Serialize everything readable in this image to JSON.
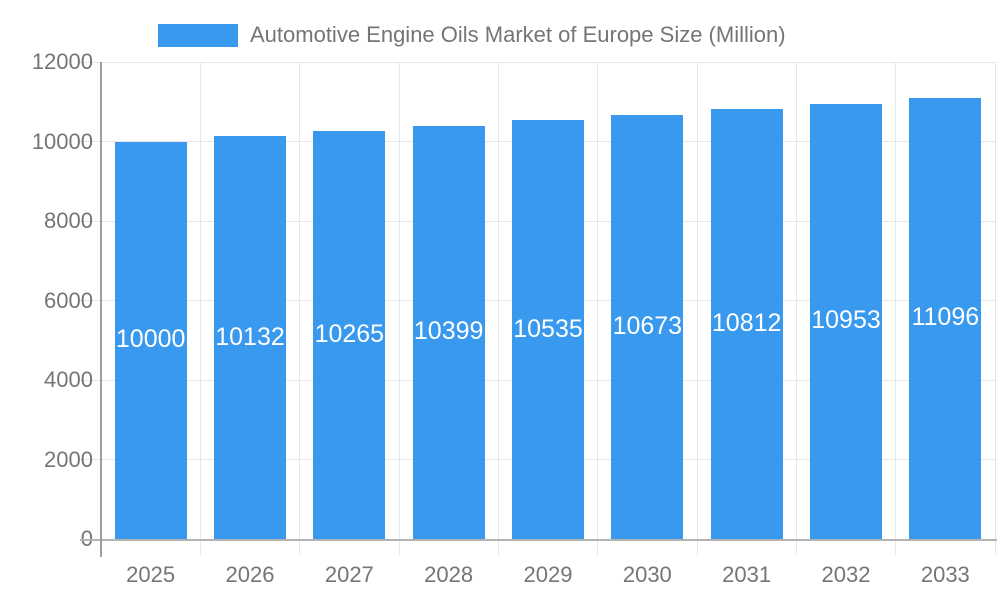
{
  "legend": {
    "label": "Automotive Engine Oils Market of Europe Size (Million)"
  },
  "chart_data": {
    "type": "bar",
    "title": "Automotive Engine Oils Market of Europe Size (Million)",
    "series_name": "Automotive Engine Oils Market of Europe Size (Million)",
    "categories": [
      "2025",
      "2026",
      "2027",
      "2028",
      "2029",
      "2030",
      "2031",
      "2032",
      "2033"
    ],
    "values": [
      10000,
      10132,
      10265,
      10399,
      10535,
      10673,
      10812,
      10953,
      11096
    ],
    "value_labels": [
      "10000",
      "10132",
      "10265",
      "10399",
      "10535",
      "10673",
      "10812",
      "10953",
      "11096"
    ],
    "xlabel": "",
    "ylabel": "",
    "ylim": [
      0,
      12000
    ],
    "y_ticks": [
      0,
      2000,
      4000,
      6000,
      8000,
      10000,
      12000
    ],
    "y_tick_labels": [
      "0",
      "2000",
      "4000",
      "6000",
      "8000",
      "10000",
      "12000"
    ],
    "grid": true,
    "legend_position": "top",
    "colors": {
      "bar": "#3899ee",
      "gridline": "#e6e6e6",
      "axis_baseline": "#b3b3b3",
      "yaxis_line": "#9e9e9e",
      "axis_text": "#757575",
      "value_text": "#ffffff",
      "background": "#ffffff"
    }
  }
}
